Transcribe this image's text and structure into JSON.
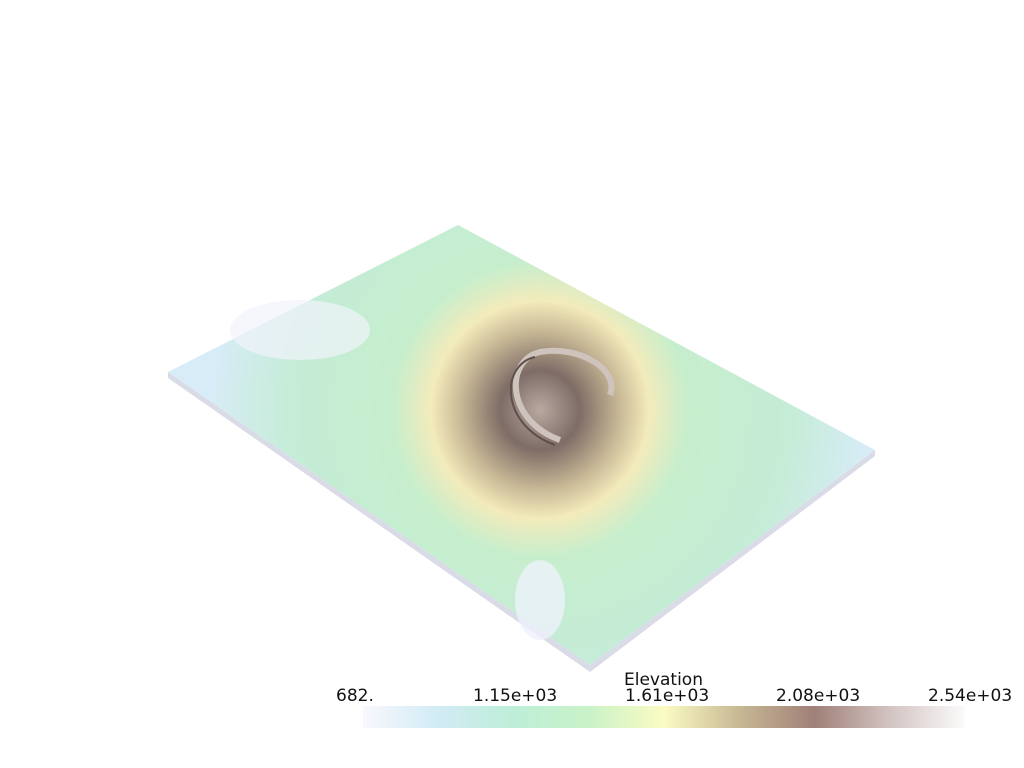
{
  "chart_data": {
    "type": "surface",
    "scalar_bar": {
      "title": "Elevation",
      "range": [
        682,
        2540
      ],
      "tick_labels": [
        "682.",
        "1.15e+03",
        "1.61e+03",
        "2.08e+03",
        "2.54e+03"
      ],
      "colormap_stops": [
        "#f8f8fc",
        "#d2ebf6",
        "#bdeed7",
        "#c9f2c8",
        "#fbfbc3",
        "#c7b894",
        "#a08078",
        "#d3c4c2",
        "#fbfbfb"
      ],
      "orientation": "horizontal",
      "placement": "bottom"
    },
    "surface": {
      "colors": {
        "low": "#d6ebf6",
        "mid": "#c1eccb",
        "foothill": "#f1eab8",
        "summit": "#8d7a74"
      }
    }
  }
}
